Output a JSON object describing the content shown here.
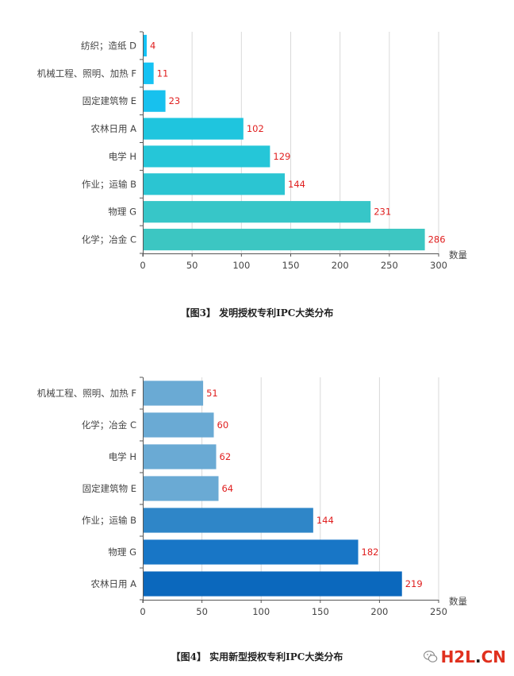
{
  "chart_data": [
    {
      "type": "bar",
      "orientation": "horizontal",
      "categories": [
        "纺织；造纸 D",
        "机械工程、照明、加热 F",
        "固定建筑物 E",
        "农林日用 A",
        "电学 H",
        "作业；运输 B",
        "物理 G",
        "化学；冶金 C"
      ],
      "values": [
        4,
        11,
        23,
        102,
        129,
        144,
        231,
        286
      ],
      "bar_colors": [
        "#14c3f7",
        "#15c2f3",
        "#17c1ee",
        "#1fc5de",
        "#25c6d8",
        "#2bc5d2",
        "#37c6c8",
        "#3cc6c2"
      ],
      "xlim": [
        0,
        300
      ],
      "xticks": [
        0,
        50,
        100,
        150,
        200,
        250,
        300
      ],
      "xlabel": "数量",
      "grid": true
    },
    {
      "type": "bar",
      "orientation": "horizontal",
      "categories": [
        "机械工程、照明、加热 F",
        "化学；冶金 C",
        "电学 H",
        "固定建筑物 E",
        "作业；运输 B",
        "物理 G",
        "农林日用 A"
      ],
      "values": [
        51,
        60,
        62,
        64,
        144,
        182,
        219
      ],
      "bar_colors": [
        "#6aaad4",
        "#6aaad4",
        "#6aaad4",
        "#6aaad4",
        "#2f86c8",
        "#1876c6",
        "#0b68bd"
      ],
      "xlim": [
        0,
        250
      ],
      "xticks": [
        0,
        50,
        100,
        150,
        200,
        250
      ],
      "xlabel": "数量",
      "grid": true
    }
  ],
  "captions": {
    "fig3": "【图3】 发明授权专利IPC大类分布",
    "fig4": "【图4】 实用新型授权专利IPC大类分布"
  },
  "watermark": {
    "logo_part1": "H2L",
    "logo_dot": ".",
    "logo_part2": "CN",
    "icon": "wechat-icon"
  }
}
